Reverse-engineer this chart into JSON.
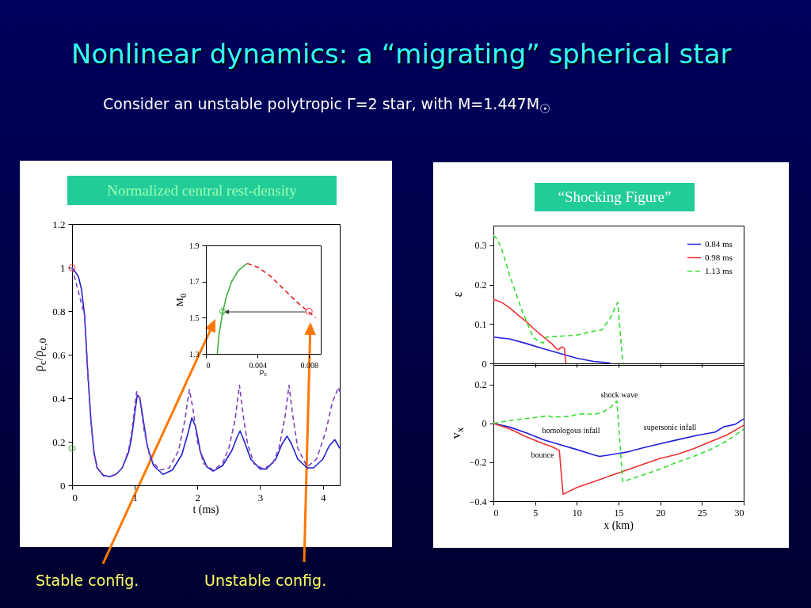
{
  "chart_data": [
    {
      "type": "line",
      "title": "Nonlinear dynamics: a “migrating” spherical star",
      "subtitle": "Consider an unstable polytropic Γ=2 star, with M=1.447M$_{☉}$",
      "xlabel": "t (ms)",
      "ylabel": "ρ$_{c}$/ρ$_{c,0}$",
      "annotations": [
        "Normalized central rest-density"
      ],
      "xlim": [
        0,
        4.27
      ],
      "xticks": [
        0,
        1,
        2,
        3,
        4
      ],
      "ylim": [
        0,
        1.2
      ],
      "yticks": [
        0,
        0.2,
        0.4,
        0.6,
        0.8,
        1,
        1.2
      ],
      "series": [
        {
          "color": "#2020d0",
          "line_style": "solid",
          "x": [
            0,
            0.1,
            0.15,
            0.2,
            0.25,
            0.3,
            0.35,
            0.4,
            0.5,
            0.6,
            0.7,
            0.8,
            0.9,
            0.95,
            1.0,
            1.04,
            1.08,
            1.12,
            1.2,
            1.3,
            1.45,
            1.6,
            1.75,
            1.85,
            1.91,
            1.97,
            2.05,
            2.15,
            2.25,
            2.4,
            2.55,
            2.63,
            2.68,
            2.75,
            2.85,
            3.0,
            3.1,
            3.25,
            3.35,
            3.43,
            3.5,
            3.6,
            3.75,
            3.85,
            4.0,
            4.1,
            4.19,
            4.27
          ],
          "values": [
            1,
            0.96,
            0.9,
            0.78,
            0.52,
            0.3,
            0.15,
            0.08,
            0.045,
            0.04,
            0.05,
            0.08,
            0.15,
            0.22,
            0.33,
            0.415,
            0.4,
            0.33,
            0.18,
            0.09,
            0.05,
            0.07,
            0.14,
            0.24,
            0.31,
            0.27,
            0.15,
            0.085,
            0.065,
            0.09,
            0.16,
            0.22,
            0.25,
            0.2,
            0.12,
            0.075,
            0.075,
            0.12,
            0.19,
            0.226,
            0.19,
            0.12,
            0.08,
            0.08,
            0.12,
            0.18,
            0.21,
            0.17
          ]
        },
        {
          "color": "#8040c0",
          "line_style": "dashed",
          "x": [
            0,
            0.2,
            0.25,
            0.3,
            0.35,
            0.4,
            0.5,
            0.6,
            0.7,
            0.8,
            0.9,
            0.95,
            1.0,
            1.03,
            1.08,
            1.15,
            1.25,
            1.4,
            1.55,
            1.7,
            1.8,
            1.87,
            1.93,
            2.0,
            2.1,
            2.25,
            2.4,
            2.5,
            2.6,
            2.67,
            2.73,
            2.8,
            2.9,
            3.05,
            3.2,
            3.3,
            3.4,
            3.46,
            3.52,
            3.6,
            3.75,
            3.9,
            4.05,
            4.15,
            4.25,
            4.27
          ],
          "values": [
            1,
            0.78,
            0.52,
            0.3,
            0.15,
            0.08,
            0.045,
            0.04,
            0.05,
            0.08,
            0.16,
            0.24,
            0.36,
            0.43,
            0.4,
            0.25,
            0.12,
            0.07,
            0.08,
            0.16,
            0.3,
            0.44,
            0.35,
            0.2,
            0.1,
            0.07,
            0.1,
            0.17,
            0.3,
            0.46,
            0.32,
            0.19,
            0.1,
            0.075,
            0.1,
            0.17,
            0.32,
            0.46,
            0.32,
            0.17,
            0.085,
            0.12,
            0.25,
            0.38,
            0.45,
            0.43
          ]
        },
        {
          "type": "scatter",
          "marker": "circle",
          "color": "#e02020",
          "x": [
            0
          ],
          "values": [
            1
          ]
        },
        {
          "type": "scatter",
          "marker": "cross",
          "color": "#40b040",
          "x": [
            0
          ],
          "values": [
            0.17
          ]
        }
      ]
    },
    {
      "type": "line",
      "xlabel": "ρ$_{c}$",
      "ylabel": "M$_{0}$",
      "annotations": [
        "Stable config.",
        "Unstable config."
      ],
      "xlim": [
        0,
        0.0089
      ],
      "xticks": [
        0,
        0.004,
        0.008
      ],
      "ylim": [
        1.3,
        1.9
      ],
      "yticks": [
        1.3,
        1.5,
        1.7,
        1.9
      ],
      "series": [
        {
          "color": "#40b040",
          "line_style": "solid",
          "x": [
            0.00088,
            0.001,
            0.0013,
            0.0016,
            0.002,
            0.0025,
            0.003,
            0.0032
          ],
          "values": [
            1.3,
            1.4,
            1.53,
            1.62,
            1.7,
            1.76,
            1.79,
            1.8
          ]
        },
        {
          "color": "#e02020",
          "line_style": "dashed",
          "x": [
            0.0032,
            0.004,
            0.005,
            0.006,
            0.007,
            0.008,
            0.0085
          ],
          "values": [
            1.8,
            1.78,
            1.73,
            1.66,
            1.59,
            1.53,
            1.5
          ]
        },
        {
          "type": "scatter",
          "marker": "circle",
          "color": "#e02020",
          "x": [
            0.008
          ],
          "values": [
            1.535
          ]
        },
        {
          "type": "scatter",
          "marker": "cross",
          "color": "#40b040",
          "x": [
            0.0013
          ],
          "values": [
            1.535
          ]
        }
      ]
    },
    {
      "type": "line",
      "ylabel": "ε",
      "annotations": [
        "“Shocking Figure”"
      ],
      "legend": "top right",
      "tick_labels": "y",
      "xlim": [
        0,
        30
      ],
      "xticks": [
        0,
        5,
        10,
        15,
        20,
        25,
        30
      ],
      "ylim": [
        0,
        0.35
      ],
      "yticks": [
        0,
        0.1,
        0.2,
        0.3
      ],
      "series": [
        {
          "name": "0.84 ms",
          "color": "#2020e0",
          "line_style": "solid",
          "x": [
            0,
            2,
            4,
            6,
            8,
            10,
            12,
            14
          ],
          "values": [
            0.067,
            0.062,
            0.05,
            0.037,
            0.025,
            0.013,
            0.005,
            0.001
          ]
        },
        {
          "name": "0.98 ms",
          "color": "#f03030",
          "line_style": "solid",
          "x": [
            0,
            1,
            2,
            3,
            4,
            5,
            6,
            7,
            7.5,
            7.8,
            8.2,
            8.5,
            8.7
          ],
          "values": [
            0.163,
            0.155,
            0.14,
            0.122,
            0.105,
            0.085,
            0.067,
            0.05,
            0.038,
            0.035,
            0.042,
            0.038,
            0
          ]
        },
        {
          "name": "1.13 ms",
          "color": "#30e030",
          "line_style": "dashed",
          "x": [
            0,
            0.5,
            1,
            2,
            3,
            3.5,
            4,
            4.76,
            5.5,
            6,
            6.3,
            8,
            10,
            12,
            13,
            14,
            14.9,
            15.5,
            15.6
          ],
          "values": [
            0.325,
            0.315,
            0.29,
            0.22,
            0.16,
            0.13,
            0.105,
            0.066,
            0.055,
            0.052,
            0.067,
            0.069,
            0.072,
            0.082,
            0.085,
            0.115,
            0.155,
            0.003,
            0
          ]
        }
      ]
    },
    {
      "type": "line",
      "xlabel": "x (km)",
      "ylabel": "v$_{x}$",
      "annotations": [
        "shock wave",
        "homologous infall",
        "supersonic infall",
        "bounce"
      ],
      "xlim": [
        0,
        30
      ],
      "xticks": [
        0,
        5,
        10,
        15,
        20,
        25,
        30
      ],
      "ylim": [
        -0.4,
        0.3
      ],
      "yticks": [
        -0.4,
        -0.2,
        0,
        0.2
      ],
      "series": [
        {
          "color": "#2020e0",
          "line_style": "solid",
          "x": [
            0,
            2,
            4,
            6,
            8,
            10,
            12,
            12.7,
            14,
            15,
            16.2,
            18,
            20,
            22,
            24.4,
            26.6,
            27.6,
            29,
            30
          ],
          "values": [
            0,
            -0.02,
            -0.05,
            -0.085,
            -0.11,
            -0.135,
            -0.162,
            -0.17,
            -0.162,
            -0.155,
            -0.146,
            -0.125,
            -0.105,
            -0.085,
            -0.062,
            -0.045,
            -0.018,
            -0.005,
            0.023
          ]
        },
        {
          "color": "#f03030",
          "line_style": "solid",
          "x": [
            0,
            2,
            4,
            6,
            7,
            7.9,
            8.35,
            10,
            12,
            14,
            16,
            18,
            20,
            22,
            24,
            25.7,
            28,
            30
          ],
          "values": [
            0,
            -0.03,
            -0.07,
            -0.105,
            -0.12,
            -0.139,
            -0.365,
            -0.33,
            -0.3,
            -0.27,
            -0.24,
            -0.21,
            -0.18,
            -0.16,
            -0.13,
            -0.1,
            -0.06,
            -0.01
          ]
        },
        {
          "color": "#30e030",
          "line_style": "dashed",
          "x": [
            0,
            2,
            4,
            6,
            6.5,
            7,
            9,
            10,
            11,
            12,
            13,
            14,
            14.8,
            15.5,
            18,
            20,
            22,
            24,
            26,
            28,
            30
          ],
          "values": [
            0,
            0.015,
            0.025,
            0.035,
            0.04,
            0.032,
            0.035,
            0.045,
            0.05,
            0.045,
            0.055,
            0.08,
            0.115,
            -0.3,
            -0.265,
            -0.235,
            -0.2,
            -0.17,
            -0.135,
            -0.09,
            -0.03
          ]
        }
      ]
    }
  ]
}
